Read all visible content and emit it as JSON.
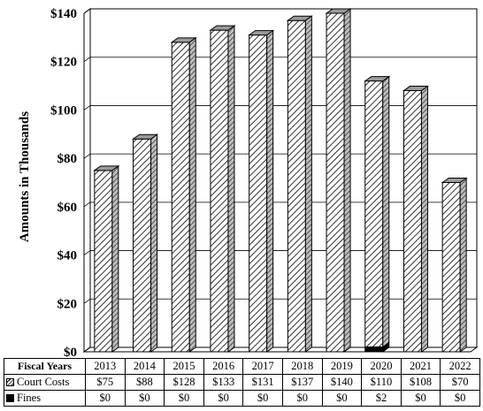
{
  "chart_data": {
    "type": "bar",
    "ylabel": "Amounts in Thousands",
    "ylim": [
      0,
      140
    ],
    "yticks": [
      "$0",
      "$20",
      "$40",
      "$60",
      "$80",
      "$100",
      "$120",
      "$140"
    ],
    "categories": [
      "2013",
      "2014",
      "2015",
      "2016",
      "2017",
      "2018",
      "2019",
      "2020",
      "2021",
      "2022"
    ],
    "series": [
      {
        "name": "Court Costs",
        "values": [
          75,
          88,
          128,
          133,
          131,
          137,
          140,
          110,
          108,
          70
        ],
        "labels": [
          "$75",
          "$88",
          "$128",
          "$133",
          "$131",
          "$137",
          "$140",
          "$110",
          "$108",
          "$70"
        ]
      },
      {
        "name": "Fines",
        "values": [
          0,
          0,
          0,
          0,
          0,
          0,
          0,
          2,
          0,
          0
        ],
        "labels": [
          "$0",
          "$0",
          "$0",
          "$0",
          "$0",
          "$0",
          "$0",
          "$2",
          "$0",
          "$0"
        ]
      }
    ],
    "grid": true,
    "legend": "data table below plot"
  },
  "table": {
    "header_label": "Fiscal Years"
  }
}
